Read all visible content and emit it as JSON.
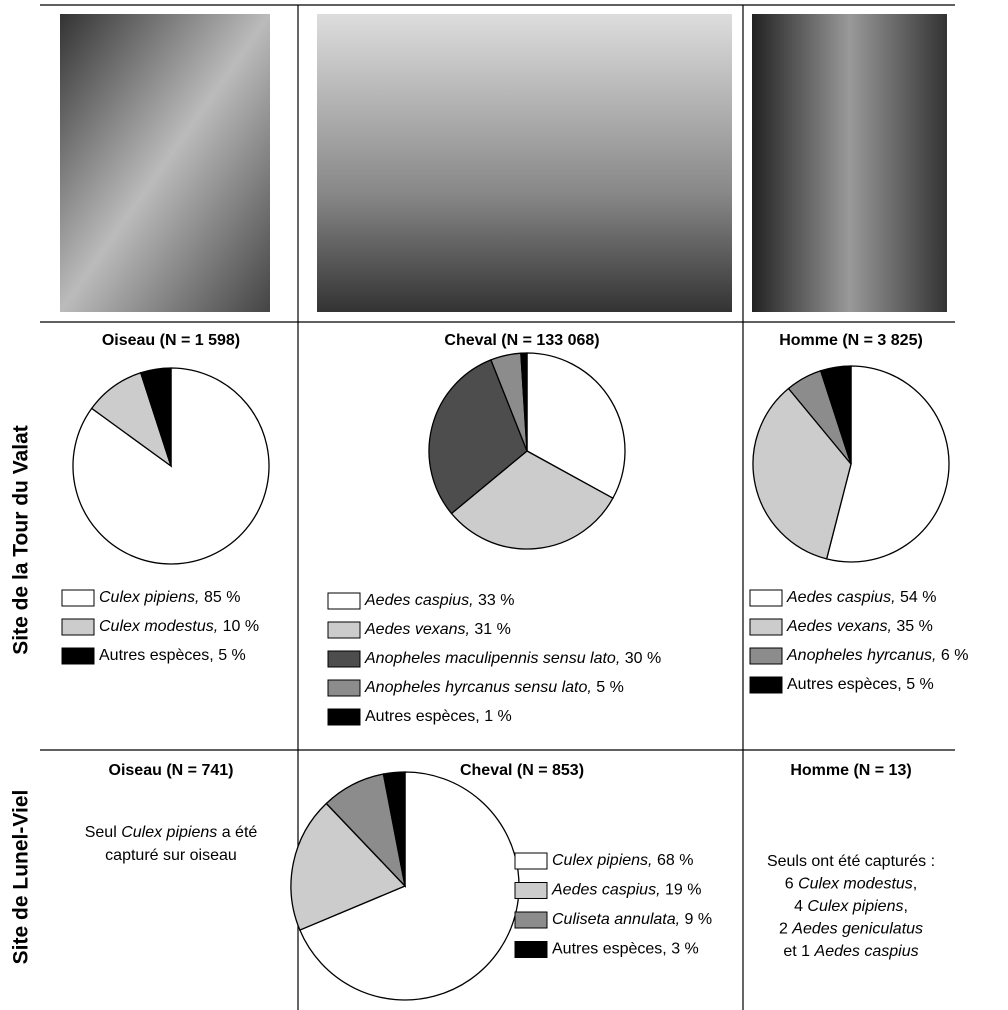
{
  "rows": [
    "Site de la Tour du Valat",
    "Site de Lunel-Viel"
  ],
  "chart_data": [
    {
      "type": "pie",
      "title": "Oiseau (N = 1 598)",
      "categories": [
        "Culex pipiens,",
        "Culex modestus,",
        "Autres espèces,"
      ],
      "italic": [
        true,
        true,
        false
      ],
      "values": [
        85,
        10,
        5
      ],
      "value_labels": [
        "85 %",
        "10 %",
        "5 %"
      ],
      "colors": [
        "#ffffff",
        "#cccccc",
        "#000000"
      ]
    },
    {
      "type": "pie",
      "title": "Cheval (N = 133 068)",
      "categories": [
        "Aedes caspius,",
        "Aedes vexans,",
        "Anopheles maculipennis sensu lato,",
        "Anopheles hyrcanus sensu lato,",
        "Autres espèces,"
      ],
      "italic": [
        true,
        true,
        true,
        true,
        false
      ],
      "values": [
        33,
        31,
        30,
        5,
        1
      ],
      "value_labels": [
        "33 %",
        "31 %",
        "30 %",
        "5 %",
        "1 %"
      ],
      "colors": [
        "#ffffff",
        "#cccccc",
        "#4d4d4d",
        "#8c8c8c",
        "#000000"
      ]
    },
    {
      "type": "pie",
      "title": "Homme (N = 3 825)",
      "categories": [
        "Aedes caspius,",
        "Aedes vexans,",
        "Anopheles hyrcanus,",
        "Autres espèces,"
      ],
      "italic": [
        true,
        true,
        true,
        false
      ],
      "values": [
        54,
        35,
        6,
        5
      ],
      "value_labels": [
        "54 %",
        "35 %",
        "6 %",
        "5 %"
      ],
      "colors": [
        "#ffffff",
        "#cccccc",
        "#8c8c8c",
        "#000000"
      ]
    },
    {
      "type": "text",
      "title": "Oiseau (N = 741)"
    },
    {
      "type": "pie",
      "title": "Cheval (N = 853)",
      "categories": [
        "Culex pipiens,",
        "Aedes caspius,",
        "Culiseta annulata,",
        "Autres espèces,"
      ],
      "italic": [
        true,
        true,
        true,
        false
      ],
      "values": [
        68,
        19,
        9,
        3
      ],
      "value_labels": [
        "68 %",
        "19 %",
        "9 %",
        "3 %"
      ],
      "colors": [
        "#ffffff",
        "#cccccc",
        "#8c8c8c",
        "#000000"
      ]
    },
    {
      "type": "text",
      "title": "Homme (N = 13)"
    }
  ],
  "notes": [
    {
      "lines": [
        [
          {
            "text": "Seul "
          },
          {
            "text": "Culex pipiens",
            "italic": true
          },
          {
            "text": " a été"
          }
        ],
        [
          {
            "text": "capturé sur oiseau"
          }
        ]
      ]
    },
    {
      "lines": [
        [
          {
            "text": "Seuls ont été capturés :"
          }
        ],
        [
          {
            "text": "6 "
          },
          {
            "text": "Culex modestus",
            "italic": true
          },
          {
            "text": ","
          }
        ],
        [
          {
            "text": "4 "
          },
          {
            "text": "Culex pipiens",
            "italic": true
          },
          {
            "text": ","
          }
        ],
        [
          {
            "text": "2 "
          },
          {
            "text": "Aedes geniculatus",
            "italic": true
          }
        ],
        [
          {
            "text": "et 1 "
          },
          {
            "text": "Aedes caspius",
            "italic": true
          }
        ]
      ]
    }
  ]
}
